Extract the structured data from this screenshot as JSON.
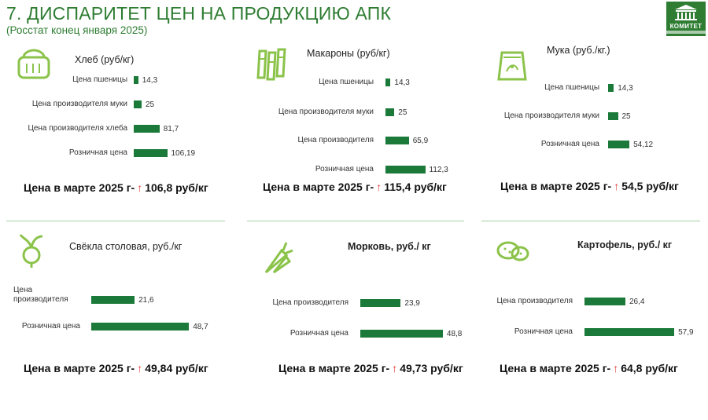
{
  "header": {
    "title": "7. ДИСПАРИТЕТ ЦЕН НА ПРОДУКЦИЮ АПК",
    "subtitle": "(Росстат конец января 2025)",
    "logo_text": "КОМИТЕТ"
  },
  "colors": {
    "bar": "#1b7a3a",
    "accent": "#2e7d32",
    "arrow": "#e53935"
  },
  "footer_prefix": "Цена в марте 2025 г-",
  "chart_data": [
    {
      "type": "bar",
      "orientation": "horizontal",
      "title": "Хлеб (руб/кг)",
      "icon": "bread-icon",
      "categories": [
        "Цена пшеницы",
        "Цена производителя муки",
        "Цена производителя хлеба",
        "Розничная цена"
      ],
      "values": [
        14.3,
        25,
        81.7,
        106.19
      ],
      "value_labels": [
        "14,3",
        "25",
        "81,7",
        "106,19"
      ],
      "march_price": "106,8 руб/кг"
    },
    {
      "type": "bar",
      "orientation": "horizontal",
      "title": "Макароны (руб/кг)",
      "icon": "pasta-icon",
      "categories": [
        "Цена пшеницы",
        "Цена производителя муки",
        "Цена производителя",
        "Розничная цена"
      ],
      "values": [
        14.3,
        25,
        65.9,
        112.3
      ],
      "value_labels": [
        "14,3",
        "25",
        "65,9",
        "112,3"
      ],
      "march_price": "115,4 руб/кг"
    },
    {
      "type": "bar",
      "orientation": "horizontal",
      "title": "Мука (руб./кг.)",
      "icon": "flour-bag-icon",
      "categories": [
        "Цена пшеницы",
        "Цена производителя муки",
        "Розничная цена"
      ],
      "values": [
        14.3,
        25,
        54.12
      ],
      "value_labels": [
        "14,3",
        "25",
        "54,12"
      ],
      "march_price": "54,5 руб/кг"
    },
    {
      "type": "bar",
      "orientation": "horizontal",
      "title": "Свёкла столовая, руб./кг",
      "icon": "beet-icon",
      "categories": [
        "Цена производителя",
        "Розничная цена"
      ],
      "values": [
        21.6,
        48.7
      ],
      "value_labels": [
        "21,6",
        "48,7"
      ],
      "march_price": "49,84 руб/кг"
    },
    {
      "type": "bar",
      "orientation": "horizontal",
      "title": "Морковь, руб./ кг",
      "icon": "carrot-icon",
      "categories": [
        "Цена производителя",
        "Розничная цена"
      ],
      "values": [
        23.9,
        48.8
      ],
      "value_labels": [
        "23,9",
        "48,8"
      ],
      "march_price": "49,73 руб/кг"
    },
    {
      "type": "bar",
      "orientation": "horizontal",
      "title": "Картофель, руб./ кг",
      "icon": "potato-icon",
      "categories": [
        "Цена производителя",
        "Розничная цена"
      ],
      "values": [
        26.4,
        57.9
      ],
      "value_labels": [
        "26,4",
        "57,9"
      ],
      "march_price": "64,8 руб/кг"
    }
  ]
}
